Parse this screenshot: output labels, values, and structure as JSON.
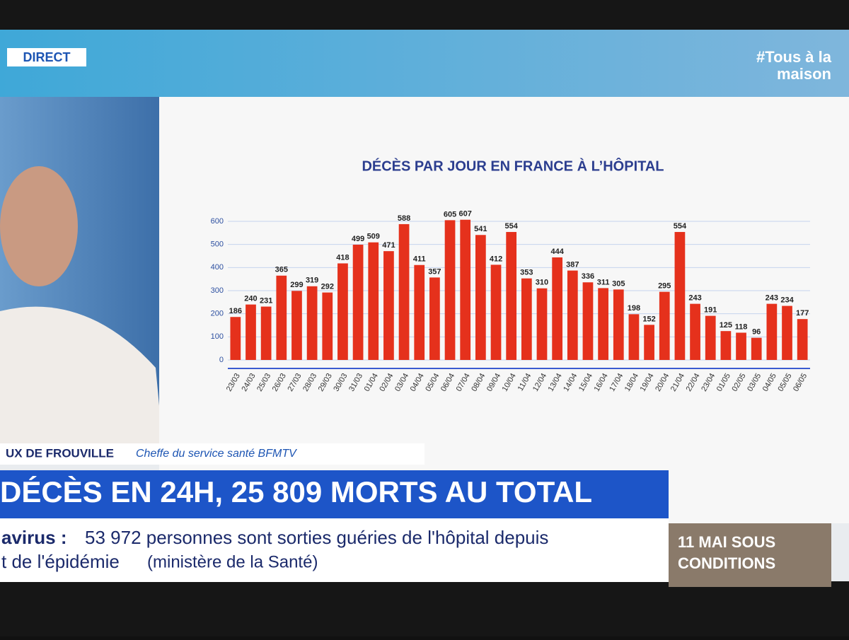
{
  "header": {
    "live": "DIRECT",
    "hashtag": "#Tous à la",
    "hashtag_line2": "maison"
  },
  "chart_data": {
    "type": "bar",
    "title": "DÉCÈS PAR JOUR EN FRANCE À L’HÔPITAL",
    "categories": [
      "23/03",
      "24/03",
      "25/03",
      "26/03",
      "27/03",
      "28/03",
      "29/03",
      "30/03",
      "31/03",
      "01/04",
      "02/04",
      "03/04",
      "04/04",
      "05/04",
      "06/04",
      "07/04",
      "08/04",
      "09/04",
      "10/04",
      "11/04",
      "12/04",
      "13/04",
      "14/04",
      "15/04",
      "16/04",
      "17/04",
      "18/04",
      "19/04",
      "20/04",
      "21/04",
      "22/04",
      "23/04",
      "01/05",
      "02/05",
      "03/05",
      "04/05",
      "05/05",
      "06/05"
    ],
    "values": [
      186,
      240,
      231,
      365,
      299,
      319,
      292,
      418,
      499,
      509,
      471,
      588,
      411,
      357,
      605,
      607,
      541,
      412,
      554,
      353,
      310,
      444,
      387,
      336,
      311,
      305,
      198,
      152,
      295,
      554,
      243,
      191,
      125,
      118,
      96,
      243,
      234,
      177
    ],
    "color": "#e5311c",
    "ylim": [
      0,
      600
    ],
    "yticks": [
      0,
      100,
      200,
      300,
      400,
      500,
      600
    ],
    "grid": true
  },
  "lower_third": {
    "name": "UX DE FROUVILLE",
    "role": "Cheffe du service santé BFMTV"
  },
  "headline": "DÉCÈS EN 24H, 25 809 MORTS AU TOTAL",
  "ticker": {
    "topic": "avirus :",
    "line1": "53 972 personnes sont sorties guéries de l'hôpital depuis",
    "line2": "t de l'épidémie",
    "source": "(ministère de la Santé)"
  },
  "promo": {
    "line1": "11 MAI SOUS",
    "line2": "CONDITIONS"
  }
}
